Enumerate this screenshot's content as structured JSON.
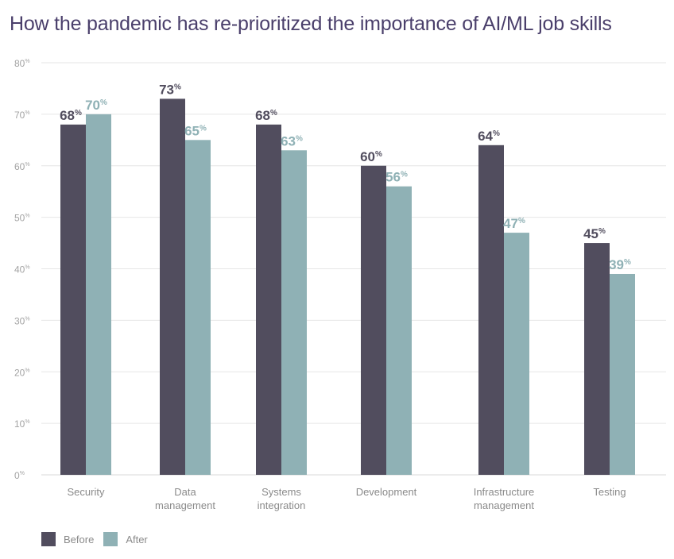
{
  "title": "How the pandemic has re-prioritized the importance of AI/ML job skills",
  "legend": {
    "before_label": "Before",
    "after_label": "After"
  },
  "colors": {
    "before": "#514d5e",
    "after": "#8fb1b5",
    "title": "#4a3f6b",
    "grid": "#e6e6e6"
  },
  "chart_data": {
    "type": "bar",
    "categories": [
      [
        "Security"
      ],
      [
        "Data",
        "management"
      ],
      [
        "Systems",
        "integration"
      ],
      [
        "Development"
      ],
      [
        "Infrastructure",
        "management"
      ],
      [
        "Testing"
      ]
    ],
    "series": [
      {
        "name": "Before",
        "values": [
          68,
          73,
          68,
          60,
          64,
          45
        ]
      },
      {
        "name": "After",
        "values": [
          70,
          65,
          63,
          56,
          47,
          39
        ]
      }
    ],
    "ylim": [
      0,
      80
    ],
    "yticks": [
      0,
      10,
      20,
      30,
      40,
      50,
      60,
      70,
      80
    ],
    "tick_suffix": "%",
    "value_suffix": "%",
    "grid": true,
    "legend_position": "bottom-left"
  }
}
